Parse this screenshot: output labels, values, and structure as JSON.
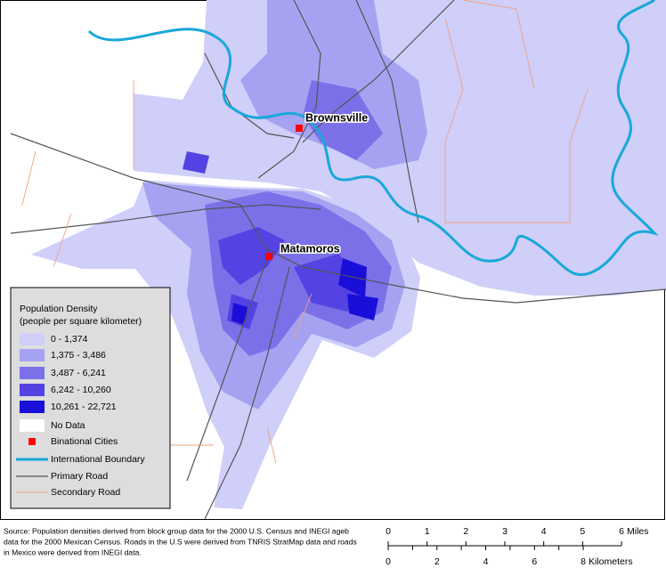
{
  "map": {
    "cities": [
      "Brownsville",
      "Matamoros"
    ],
    "legend": {
      "title": [
        "Population Density",
        "(people per square kilometer)"
      ],
      "classes": [
        {
          "label": "0 - 1,374",
          "color": "#cfcffa"
        },
        {
          "label": "1,375 - 3,486",
          "color": "#a6a2f2"
        },
        {
          "label": "3,487 - 6,241",
          "color": "#7c70e9"
        },
        {
          "label": "6,242 - 10,260",
          "color": "#5442e2"
        },
        {
          "label": "10,261 - 22,721",
          "color": "#1a0fd8"
        },
        {
          "label": "No Data",
          "color": "#ffffff"
        }
      ],
      "symbols": [
        "Binational Cities",
        "International Boundary",
        "Primary Road",
        "Secondary Road"
      ]
    },
    "source": [
      "Source: Population densities derived from block group data for the 2000 U.S. Census and INEGI ageb",
      "data for the 2000 Mexican Census. Roads in the U.S were derived from TNRIS StratMap data and roads",
      "in Mexico were derived from INEGI data."
    ],
    "scale": {
      "miles": {
        "ticks": [
          0,
          1,
          2,
          3,
          4,
          5,
          6
        ],
        "unit": "Miles"
      },
      "kilometers": {
        "ticks": [
          0,
          2,
          4,
          6,
          8
        ],
        "unit": "Kilometers"
      }
    }
  }
}
